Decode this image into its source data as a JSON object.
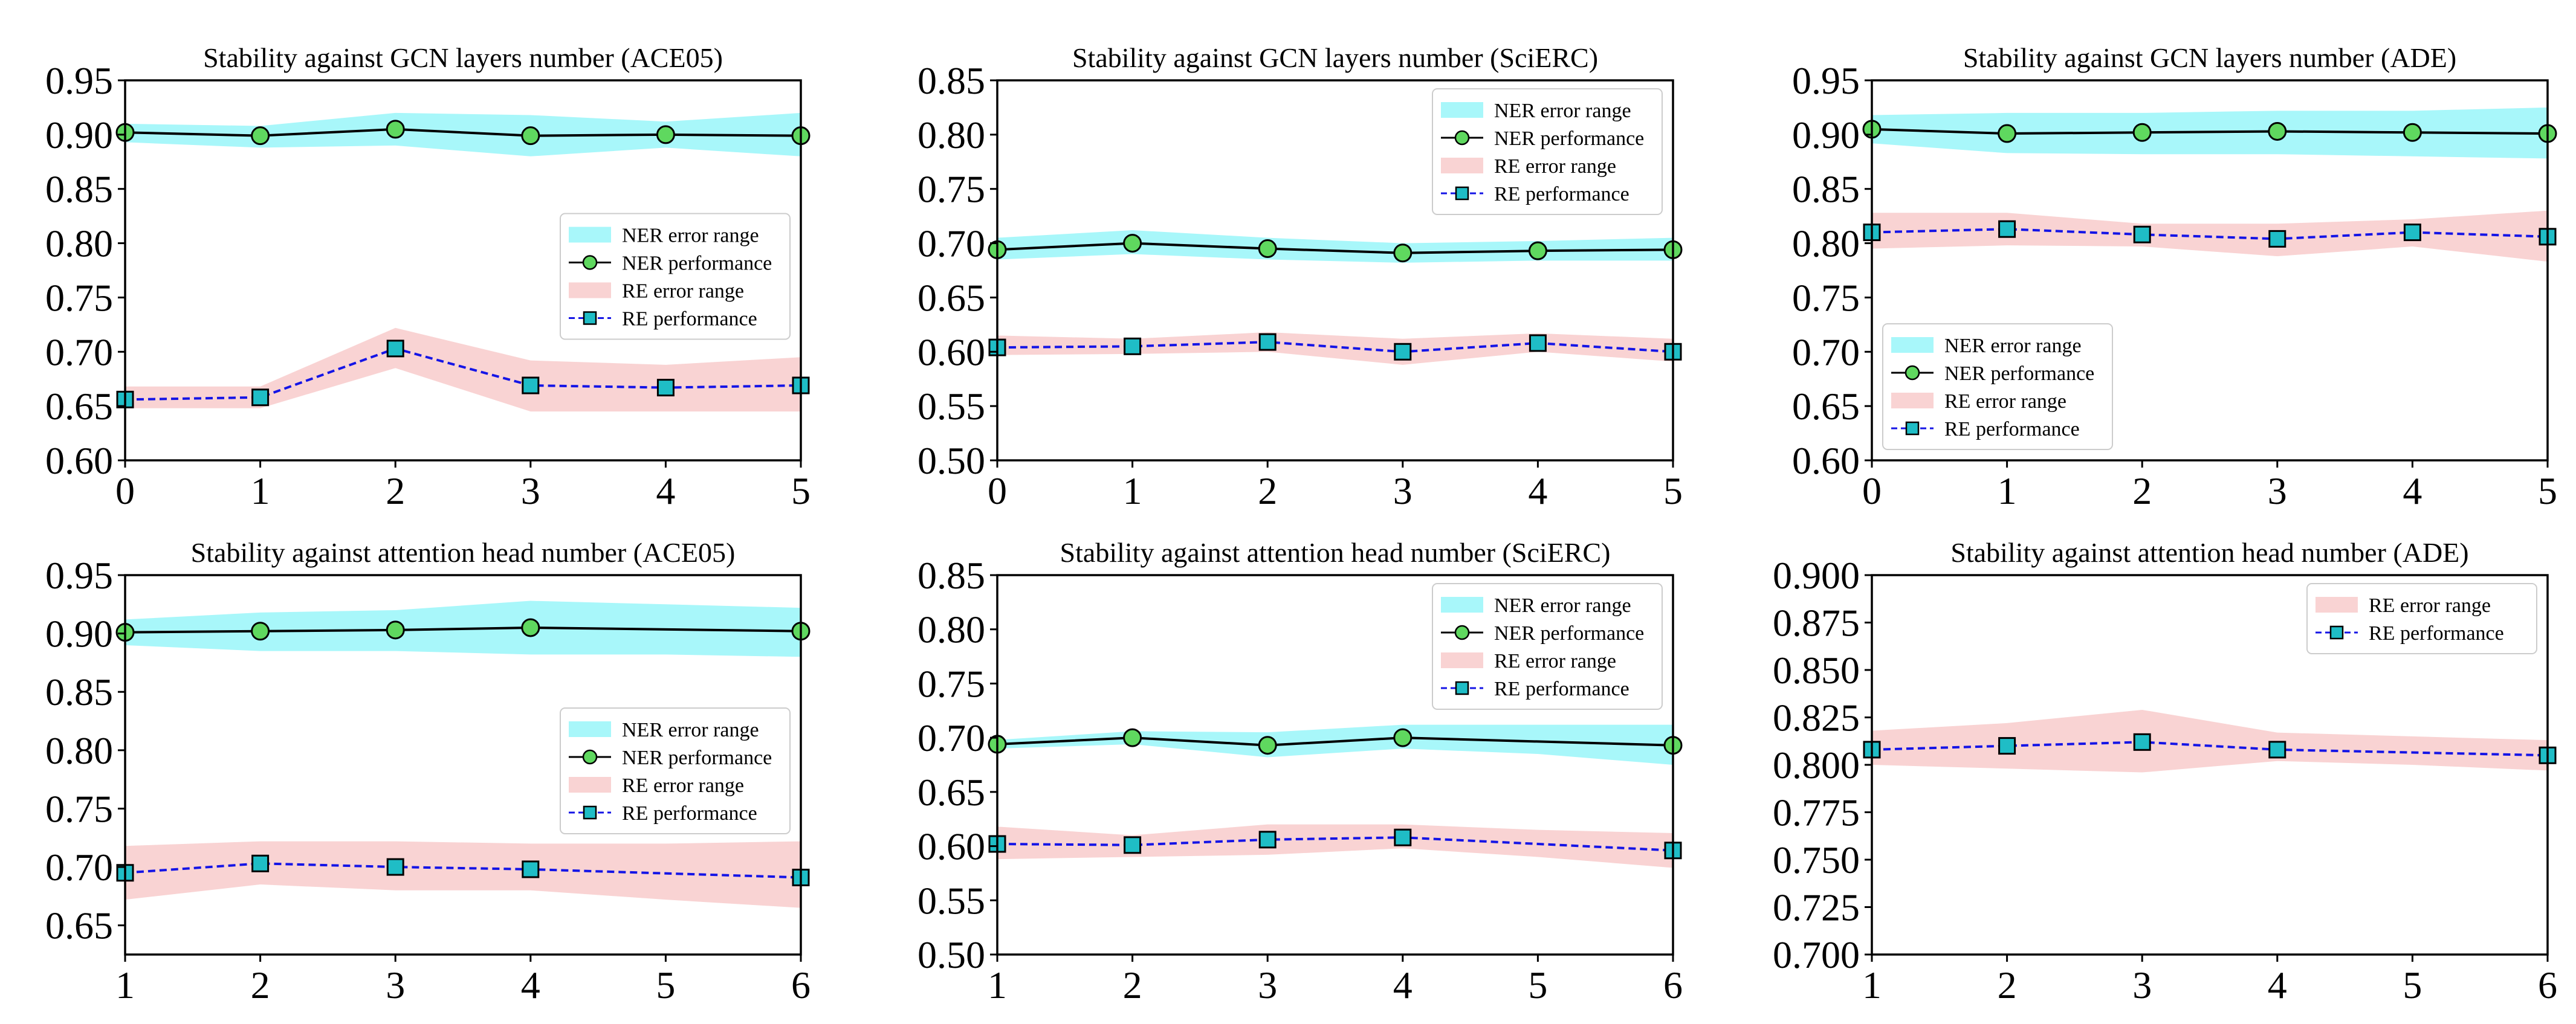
{
  "chart_data": [
    {
      "type": "line",
      "title": "Stability against GCN layers number (ACE05)",
      "xlabel": "",
      "ylabel": "",
      "x": [
        0,
        1,
        2,
        3,
        4,
        5
      ],
      "xlim": [
        0,
        5
      ],
      "ylim": [
        0.6,
        0.95
      ],
      "xticks": [
        "0",
        "1",
        "2",
        "3",
        "4",
        "5"
      ],
      "yticks": [
        "0.60",
        "0.65",
        "0.70",
        "0.75",
        "0.80",
        "0.85",
        "0.90",
        "0.95"
      ],
      "grid": false,
      "legend": "center-right",
      "series": [
        {
          "kind": "band",
          "name": "NER error range",
          "color": "#a8f7fa",
          "upper": [
            0.91,
            0.908,
            0.92,
            0.918,
            0.912,
            0.92
          ],
          "lower": [
            0.893,
            0.888,
            0.89,
            0.88,
            0.888,
            0.88
          ]
        },
        {
          "kind": "line",
          "name": "NER performance",
          "line_color": "#000000",
          "marker": "circle",
          "marker_color": "#5fd85f",
          "values": [
            0.902,
            0.899,
            0.905,
            0.899,
            0.9,
            0.899
          ]
        },
        {
          "kind": "band",
          "name": "RE error range",
          "color": "#f9d3d3",
          "upper": [
            0.668,
            0.668,
            0.722,
            0.692,
            0.688,
            0.695
          ],
          "lower": [
            0.648,
            0.648,
            0.685,
            0.645,
            0.645,
            0.645
          ]
        },
        {
          "kind": "line",
          "name": "RE performance",
          "line_color": "#1414e6",
          "dashed": true,
          "marker": "square",
          "marker_color": "#1fbdc6",
          "values": [
            0.656,
            0.658,
            0.703,
            0.669,
            0.667,
            0.669
          ]
        }
      ]
    },
    {
      "type": "line",
      "title": "Stability against GCN layers number (SciERC)",
      "xlabel": "",
      "ylabel": "",
      "x": [
        0,
        1,
        2,
        3,
        4,
        5
      ],
      "xlim": [
        0,
        5
      ],
      "ylim": [
        0.5,
        0.85
      ],
      "xticks": [
        "0",
        "1",
        "2",
        "3",
        "4",
        "5"
      ],
      "yticks": [
        "0.50",
        "0.55",
        "0.60",
        "0.65",
        "0.70",
        "0.75",
        "0.80",
        "0.85"
      ],
      "grid": false,
      "legend": "top-right",
      "series": [
        {
          "kind": "band",
          "name": "NER error range",
          "color": "#a8f7fa",
          "upper": [
            0.705,
            0.712,
            0.705,
            0.7,
            0.702,
            0.705
          ],
          "lower": [
            0.685,
            0.69,
            0.685,
            0.682,
            0.684,
            0.684
          ]
        },
        {
          "kind": "line",
          "name": "NER performance",
          "line_color": "#000000",
          "marker": "circle",
          "marker_color": "#5fd85f",
          "values": [
            0.694,
            0.7,
            0.695,
            0.691,
            0.693,
            0.694
          ]
        },
        {
          "kind": "band",
          "name": "RE error range",
          "color": "#f9d3d3",
          "upper": [
            0.615,
            0.612,
            0.618,
            0.612,
            0.617,
            0.612
          ],
          "lower": [
            0.597,
            0.598,
            0.6,
            0.588,
            0.6,
            0.591
          ]
        },
        {
          "kind": "line",
          "name": "RE performance",
          "line_color": "#1414e6",
          "dashed": true,
          "marker": "square",
          "marker_color": "#1fbdc6",
          "values": [
            0.604,
            0.605,
            0.609,
            0.6,
            0.608,
            0.6
          ]
        }
      ]
    },
    {
      "type": "line",
      "title": "Stability against GCN layers number (ADE)",
      "xlabel": "",
      "ylabel": "",
      "x": [
        0,
        1,
        2,
        3,
        4,
        5
      ],
      "xlim": [
        0,
        5
      ],
      "ylim": [
        0.6,
        0.95
      ],
      "xticks": [
        "0",
        "1",
        "2",
        "3",
        "4",
        "5"
      ],
      "yticks": [
        "0.60",
        "0.65",
        "0.70",
        "0.75",
        "0.80",
        "0.85",
        "0.90",
        "0.95"
      ],
      "grid": false,
      "legend": "lower-left",
      "series": [
        {
          "kind": "band",
          "name": "NER error range",
          "color": "#a8f7fa",
          "upper": [
            0.918,
            0.92,
            0.92,
            0.922,
            0.922,
            0.925
          ],
          "lower": [
            0.892,
            0.883,
            0.882,
            0.882,
            0.88,
            0.878
          ]
        },
        {
          "kind": "line",
          "name": "NER performance",
          "line_color": "#000000",
          "marker": "circle",
          "marker_color": "#5fd85f",
          "values": [
            0.905,
            0.901,
            0.902,
            0.903,
            0.902,
            0.901
          ]
        },
        {
          "kind": "band",
          "name": "RE error range",
          "color": "#f9d3d3",
          "upper": [
            0.828,
            0.828,
            0.818,
            0.818,
            0.822,
            0.83
          ],
          "lower": [
            0.795,
            0.798,
            0.797,
            0.788,
            0.797,
            0.783
          ]
        },
        {
          "kind": "line",
          "name": "RE performance",
          "line_color": "#1414e6",
          "dashed": true,
          "marker": "square",
          "marker_color": "#1fbdc6",
          "values": [
            0.81,
            0.813,
            0.808,
            0.804,
            0.81,
            0.806
          ]
        }
      ]
    },
    {
      "type": "line",
      "title": "Stability against attention head number (ACE05)",
      "xlabel": "",
      "ylabel": "",
      "x": [
        1,
        2,
        3,
        4,
        5,
        6
      ],
      "xlim": [
        1,
        6
      ],
      "ylim": [
        0.625,
        0.95
      ],
      "xticks": [
        "1",
        "2",
        "3",
        "4",
        "5",
        "6"
      ],
      "yticks": [
        "0.65",
        "0.70",
        "0.75",
        "0.80",
        "0.85",
        "0.90",
        "0.95"
      ],
      "grid": false,
      "legend": "center-right",
      "series": [
        {
          "kind": "band",
          "name": "NER error range",
          "color": "#a8f7fa",
          "upper": [
            0.912,
            0.918,
            0.92,
            0.928,
            0.925,
            0.922
          ],
          "lower": [
            0.89,
            0.885,
            0.885,
            0.882,
            0.882,
            0.88
          ]
        },
        {
          "kind": "line",
          "name": "NER performance",
          "line_color": "#000000",
          "marker": "circle",
          "marker_color": "#5fd85f",
          "values": [
            0.901,
            0.902,
            0.903,
            0.905,
            null,
            0.902
          ]
        },
        {
          "kind": "band",
          "name": "RE error range",
          "color": "#f9d3d3",
          "upper": [
            0.718,
            0.722,
            0.722,
            0.72,
            0.72,
            0.722
          ],
          "lower": [
            0.672,
            0.685,
            0.68,
            0.68,
            0.672,
            0.665
          ]
        },
        {
          "kind": "line",
          "name": "RE performance",
          "line_color": "#1414e6",
          "dashed": true,
          "marker": "square",
          "marker_color": "#1fbdc6",
          "values": [
            0.695,
            0.703,
            0.7,
            0.698,
            null,
            0.691
          ]
        }
      ]
    },
    {
      "type": "line",
      "title": "Stability against attention head number (SciERC)",
      "xlabel": "",
      "ylabel": "",
      "x": [
        1,
        2,
        3,
        4,
        5,
        6
      ],
      "xlim": [
        1,
        6
      ],
      "ylim": [
        0.5,
        0.85
      ],
      "xticks": [
        "1",
        "2",
        "3",
        "4",
        "5",
        "6"
      ],
      "yticks": [
        "0.50",
        "0.55",
        "0.60",
        "0.65",
        "0.70",
        "0.75",
        "0.80",
        "0.85"
      ],
      "grid": false,
      "legend": "top-right",
      "series": [
        {
          "kind": "band",
          "name": "NER error range",
          "color": "#a8f7fa",
          "upper": [
            0.698,
            0.706,
            0.705,
            0.712,
            0.712,
            0.712
          ],
          "lower": [
            0.69,
            0.694,
            0.682,
            0.69,
            0.685,
            0.675
          ]
        },
        {
          "kind": "line",
          "name": "NER performance",
          "line_color": "#000000",
          "marker": "circle",
          "marker_color": "#5fd85f",
          "values": [
            0.694,
            0.7,
            0.693,
            0.7,
            null,
            0.693
          ]
        },
        {
          "kind": "band",
          "name": "RE error range",
          "color": "#f9d3d3",
          "upper": [
            0.618,
            0.61,
            0.62,
            0.62,
            0.615,
            0.612
          ],
          "lower": [
            0.588,
            0.59,
            0.592,
            0.598,
            0.59,
            0.58
          ]
        },
        {
          "kind": "line",
          "name": "RE performance",
          "line_color": "#1414e6",
          "dashed": true,
          "marker": "square",
          "marker_color": "#1fbdc6",
          "values": [
            0.602,
            0.601,
            0.606,
            0.608,
            null,
            0.596
          ]
        }
      ]
    },
    {
      "type": "line",
      "title": "Stability against attention head number (ADE)",
      "xlabel": "",
      "ylabel": "",
      "x": [
        1,
        2,
        3,
        4,
        5,
        6
      ],
      "xlim": [
        1,
        6
      ],
      "ylim": [
        0.7,
        0.9
      ],
      "xticks": [
        "1",
        "2",
        "3",
        "4",
        "5",
        "6"
      ],
      "yticks": [
        "0.700",
        "0.725",
        "0.750",
        "0.775",
        "0.800",
        "0.825",
        "0.850",
        "0.875",
        "0.900"
      ],
      "grid": false,
      "legend": "top-right",
      "series": [
        {
          "kind": "band",
          "name": "RE error range",
          "color": "#f9d3d3",
          "upper": [
            0.818,
            0.822,
            0.829,
            0.817,
            0.815,
            0.813
          ],
          "lower": [
            0.8,
            0.798,
            0.796,
            0.802,
            0.8,
            0.797
          ]
        },
        {
          "kind": "line",
          "name": "RE performance",
          "line_color": "#1414e6",
          "dashed": true,
          "marker": "square",
          "marker_color": "#1fbdc6",
          "values": [
            0.808,
            0.81,
            0.812,
            0.808,
            null,
            0.805
          ]
        }
      ]
    }
  ]
}
